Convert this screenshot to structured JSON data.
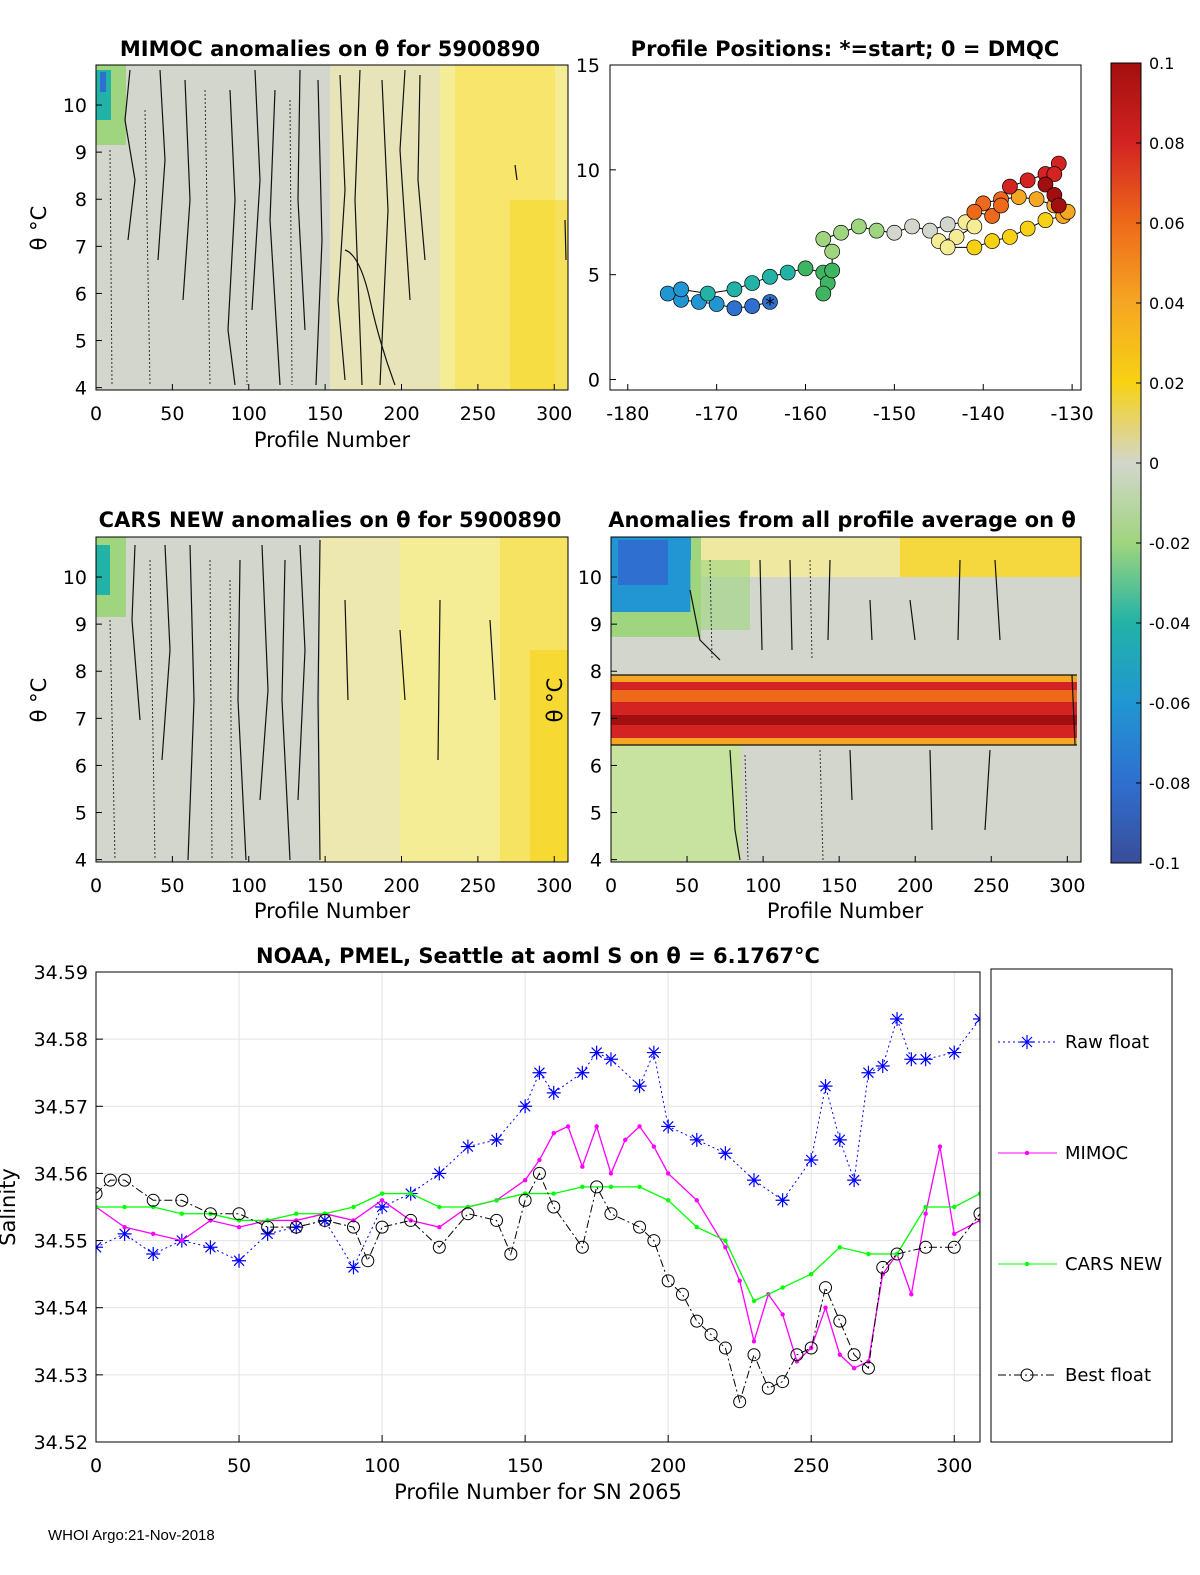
{
  "chart_data": [
    {
      "type": "heatmap",
      "id": "mimoc",
      "title": "MIMOC anomalies on θ  for 5900890",
      "xlabel": "Profile Number",
      "ylabel": "θ °C",
      "xlim": [
        0,
        309
      ],
      "ylim": [
        3.95,
        10.85
      ],
      "xticks": [
        "0",
        "50",
        "100",
        "150",
        "200",
        "250",
        "300"
      ],
      "yticks": [
        "4",
        "5",
        "6",
        "7",
        "8",
        "9",
        "10"
      ],
      "pattern": "near zero (grey) for profiles 0-200, positive (yellow, about 0.02-0.04) for profiles 200-309; slightly negative (green/blue) above 10 °C for the first 20 profiles"
    },
    {
      "type": "scatter",
      "id": "positions",
      "title": "Profile Positions: *=start; 0 = DMQC",
      "xlim": [
        -182,
        -129
      ],
      "ylim": [
        -0.5,
        15
      ],
      "xticks": [
        "-180",
        "-170",
        "-160",
        "-150",
        "-140",
        "-130"
      ],
      "yticks": [
        "0",
        "5",
        "10",
        "15"
      ],
      "track": [
        [
          -164,
          3.7
        ],
        [
          -166,
          3.5
        ],
        [
          -168,
          3.4
        ],
        [
          -170,
          3.6
        ],
        [
          -172,
          3.7
        ],
        [
          -174,
          3.8
        ],
        [
          -175.5,
          4.1
        ],
        [
          -174,
          4.3
        ],
        [
          -171,
          4.1
        ],
        [
          -168,
          4.3
        ],
        [
          -166,
          4.6
        ],
        [
          -164,
          4.9
        ],
        [
          -162,
          5.1
        ],
        [
          -160,
          5.3
        ],
        [
          -158,
          5.1
        ],
        [
          -157.5,
          4.6
        ],
        [
          -158,
          4.1
        ],
        [
          -157,
          5.2
        ],
        [
          -157,
          6.1
        ],
        [
          -158,
          6.7
        ],
        [
          -156,
          7.0
        ],
        [
          -154,
          7.3
        ],
        [
          -152,
          7.1
        ],
        [
          -150,
          7.0
        ],
        [
          -148,
          7.3
        ],
        [
          -146,
          7.1
        ],
        [
          -144,
          7.4
        ],
        [
          -142,
          7.5
        ],
        [
          -141,
          7.3
        ],
        [
          -143,
          6.8
        ],
        [
          -145,
          6.6
        ],
        [
          -144,
          6.3
        ],
        [
          -141,
          6.3
        ],
        [
          -139,
          6.6
        ],
        [
          -137,
          6.8
        ],
        [
          -135,
          7.2
        ],
        [
          -133,
          7.6
        ],
        [
          -131,
          7.8
        ],
        [
          -130.5,
          8.0
        ],
        [
          -132,
          8.3
        ],
        [
          -134,
          8.6
        ],
        [
          -136,
          8.7
        ],
        [
          -138,
          8.6
        ],
        [
          -140,
          8.4
        ],
        [
          -141,
          8.0
        ],
        [
          -139,
          7.8
        ],
        [
          -138,
          8.3
        ],
        [
          -137,
          9.2
        ],
        [
          -135,
          9.5
        ],
        [
          -133,
          9.8
        ],
        [
          -131.5,
          10.3
        ],
        [
          -132,
          9.8
        ],
        [
          -133,
          9.3
        ],
        [
          -132,
          8.8
        ],
        [
          -131.5,
          8.3
        ]
      ],
      "start_marker": "*",
      "start": [
        -164,
        3.7
      ]
    },
    {
      "type": "heatmap",
      "id": "cars",
      "title": "CARS NEW anomalies on θ for 5900890",
      "xlabel": "Profile Number",
      "ylabel": "θ °C",
      "xlim": [
        0,
        309
      ],
      "ylim": [
        3.95,
        10.85
      ],
      "xticks": [
        "0",
        "50",
        "100",
        "150",
        "200",
        "250",
        "300"
      ],
      "yticks": [
        "4",
        "5",
        "6",
        "7",
        "8",
        "9",
        "10"
      ],
      "pattern": "near zero (grey) for profiles 0-150, weakly positive (yellow) 150-309, increasing to about 0.03 near profile 300"
    },
    {
      "type": "heatmap",
      "id": "avg",
      "title": "Anomalies from all profile average on θ",
      "xlabel": "Profile Number",
      "ylabel": "θ °C",
      "xlim": [
        0,
        309
      ],
      "ylim": [
        3.95,
        10.85
      ],
      "xticks": [
        "0",
        "50",
        "100",
        "150",
        "200",
        "250",
        "300"
      ],
      "yticks": [
        "4",
        "5",
        "6",
        "7",
        "8",
        "9",
        "10"
      ],
      "pattern": "strong positive band (red, ≥0.08) between 6.5 and 7.8 °C across all profiles; negative (blue/green) above 9 °C for profiles 0-60; weakly negative green below 6.3 °C for profiles 0-90"
    },
    {
      "type": "colorbar",
      "id": "colorbar",
      "clim": [
        -0.1,
        0.1
      ],
      "ticks": [
        "0.1",
        "0.08",
        "0.06",
        "0.04",
        "0.02",
        "0",
        "-0.02",
        "-0.04",
        "-0.06",
        "-0.08",
        "-0.1"
      ],
      "tick_values": [
        0.1,
        0.08,
        0.06,
        0.04,
        0.02,
        0,
        -0.02,
        -0.04,
        -0.06,
        -0.08,
        -0.1
      ],
      "colormap": [
        "#3A4D99",
        "#2F6FCF",
        "#2196D2",
        "#22B2A6",
        "#3FB564",
        "#9FD57E",
        "#D3D6CC",
        "#F5EC96",
        "#F7D214",
        "#F5A623",
        "#EE6A1A",
        "#D32323",
        "#A30F0F"
      ]
    },
    {
      "type": "line",
      "id": "salinity",
      "title": "NOAA, PMEL, Seattle at aoml S on θ = 6.1767°C",
      "xlabel": "Profile Number for SN 2065",
      "ylabel": "Salinity",
      "xlim": [
        0,
        309
      ],
      "ylim": [
        34.52,
        34.59
      ],
      "xticks": [
        "0",
        "50",
        "100",
        "150",
        "200",
        "250",
        "300"
      ],
      "yticks": [
        "34.52",
        "34.53",
        "34.54",
        "34.55",
        "34.56",
        "34.57",
        "34.58",
        "34.59"
      ],
      "legend": [
        "Raw float",
        "MIMOC",
        "CARS NEW",
        "Best float"
      ],
      "series": [
        {
          "name": "Raw float",
          "color": "#0000FF",
          "marker": "*",
          "style": "dotted",
          "x": [
            0,
            10,
            20,
            30,
            40,
            50,
            60,
            70,
            80,
            90,
            100,
            110,
            120,
            130,
            140,
            150,
            155,
            160,
            170,
            175,
            180,
            190,
            195,
            200,
            210,
            220,
            230,
            240,
            250,
            255,
            260,
            265,
            270,
            275,
            280,
            285,
            290,
            300,
            309
          ],
          "values": [
            34.549,
            34.551,
            34.548,
            34.55,
            34.549,
            34.547,
            34.551,
            34.552,
            34.553,
            34.546,
            34.555,
            34.557,
            34.56,
            34.564,
            34.565,
            34.57,
            34.575,
            34.572,
            34.575,
            34.578,
            34.577,
            34.573,
            34.578,
            34.567,
            34.565,
            34.563,
            34.559,
            34.556,
            34.562,
            34.573,
            34.565,
            34.559,
            34.575,
            34.576,
            34.583,
            34.577,
            34.577,
            34.578,
            34.583
          ]
        },
        {
          "name": "MIMOC",
          "color": "#FF00FF",
          "marker": ".",
          "style": "solid",
          "x": [
            0,
            10,
            20,
            30,
            40,
            50,
            60,
            70,
            80,
            90,
            100,
            110,
            120,
            130,
            140,
            150,
            155,
            160,
            165,
            170,
            175,
            180,
            185,
            190,
            195,
            200,
            210,
            220,
            225,
            230,
            235,
            240,
            245,
            250,
            255,
            260,
            265,
            270,
            275,
            280,
            285,
            290,
            295,
            300,
            309
          ],
          "values": [
            34.555,
            34.552,
            34.551,
            34.55,
            34.553,
            34.552,
            34.553,
            34.553,
            34.554,
            34.553,
            34.556,
            34.553,
            34.552,
            34.555,
            34.556,
            34.559,
            34.562,
            34.566,
            34.567,
            34.561,
            34.567,
            34.56,
            34.565,
            34.567,
            34.564,
            34.56,
            34.556,
            34.549,
            34.544,
            34.535,
            34.542,
            34.539,
            34.532,
            34.534,
            34.54,
            34.533,
            34.531,
            34.532,
            34.545,
            34.548,
            34.542,
            34.554,
            34.564,
            34.551,
            34.553
          ]
        },
        {
          "name": "CARS NEW",
          "color": "#00FF00",
          "marker": ".",
          "style": "solid",
          "x": [
            0,
            10,
            20,
            30,
            40,
            50,
            60,
            70,
            80,
            90,
            100,
            110,
            120,
            130,
            140,
            150,
            160,
            170,
            180,
            190,
            200,
            210,
            220,
            230,
            240,
            250,
            260,
            270,
            280,
            290,
            300,
            309
          ],
          "values": [
            34.555,
            34.555,
            34.555,
            34.554,
            34.554,
            34.553,
            34.553,
            34.554,
            34.554,
            34.555,
            34.557,
            34.557,
            34.555,
            34.555,
            34.556,
            34.557,
            34.557,
            34.558,
            34.558,
            34.558,
            34.556,
            34.552,
            34.55,
            34.541,
            34.543,
            34.545,
            34.549,
            34.548,
            34.548,
            34.555,
            34.555,
            34.557
          ]
        },
        {
          "name": "Best float",
          "color": "#000000",
          "marker": "o",
          "style": "dashdot",
          "x": [
            0,
            5,
            10,
            20,
            30,
            40,
            50,
            60,
            70,
            80,
            90,
            95,
            100,
            110,
            120,
            130,
            140,
            145,
            150,
            155,
            160,
            170,
            175,
            180,
            190,
            195,
            200,
            205,
            210,
            215,
            220,
            225,
            230,
            235,
            240,
            245,
            250,
            255,
            260,
            265,
            270,
            275,
            280,
            290,
            300,
            309
          ],
          "values": [
            34.557,
            34.559,
            34.559,
            34.556,
            34.556,
            34.554,
            34.554,
            34.552,
            34.552,
            34.553,
            34.552,
            34.547,
            34.552,
            34.553,
            34.549,
            34.554,
            34.553,
            34.548,
            34.556,
            34.56,
            34.555,
            34.549,
            34.558,
            34.554,
            34.552,
            34.55,
            34.544,
            34.542,
            34.538,
            34.536,
            34.534,
            34.526,
            34.533,
            34.528,
            34.529,
            34.533,
            34.534,
            34.543,
            34.538,
            34.533,
            34.531,
            34.546,
            34.548,
            34.549,
            34.549,
            34.554
          ]
        }
      ]
    }
  ],
  "footer": "WHOI Argo:21-Nov-2018"
}
